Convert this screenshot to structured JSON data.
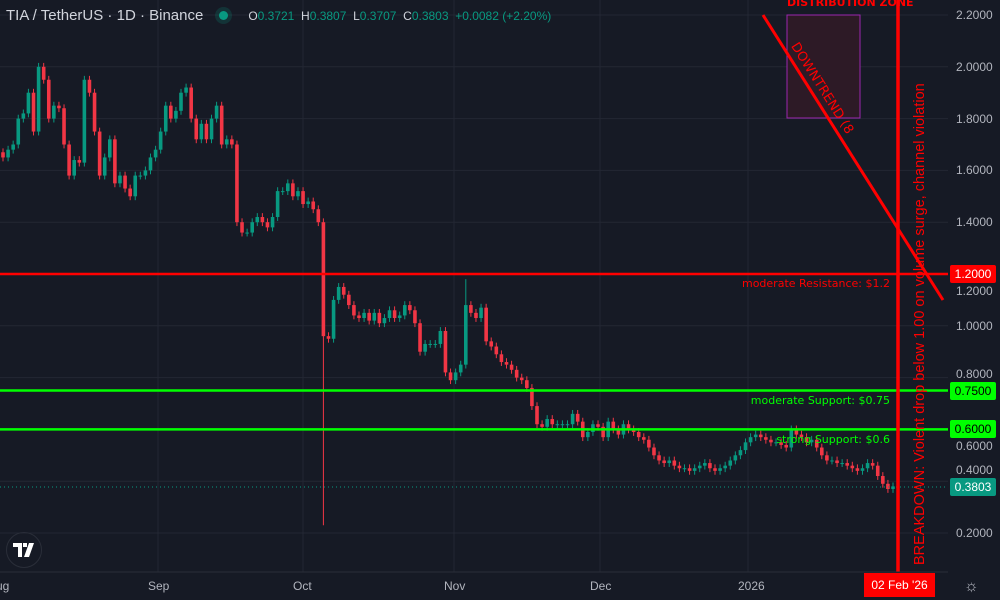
{
  "header": {
    "symbol": "TIA / TetherUS · 1D · Binance",
    "open_label": "O",
    "open": "0.3721",
    "high_label": "H",
    "high": "0.3807",
    "low_label": "L",
    "low": "0.3707",
    "close_label": "C",
    "close": "0.3803",
    "change": "+0.0082 (+2.20%)"
  },
  "colors": {
    "background": "#161a25",
    "up": "#089981",
    "down": "#f23645",
    "resistance": "#ff0000",
    "support": "#00ff00",
    "zone_border": "#9c27b0"
  },
  "chart_data": {
    "type": "candlestick",
    "interval": "1D",
    "ylim": [
      0.2,
      2.2
    ],
    "y_ticks": [
      "2.2000",
      "2.0000",
      "1.8000",
      "1.6000",
      "1.4000",
      "1.2000",
      "1.0000",
      "0.8000",
      "0.6000",
      "0.4000",
      "0.2000"
    ],
    "x_ticks": [
      "Aug",
      "Sep",
      "Oct",
      "Nov",
      "Dec",
      "2026"
    ],
    "grid": true,
    "closes": [
      1.65,
      1.68,
      1.7,
      1.8,
      1.82,
      1.9,
      1.75,
      2.0,
      1.95,
      1.8,
      1.85,
      1.84,
      1.7,
      1.58,
      1.64,
      1.63,
      1.95,
      1.9,
      1.75,
      1.58,
      1.65,
      1.72,
      1.55,
      1.58,
      1.53,
      1.5,
      1.58,
      1.58,
      1.6,
      1.65,
      1.68,
      1.75,
      1.85,
      1.8,
      1.83,
      1.9,
      1.92,
      1.8,
      1.72,
      1.78,
      1.72,
      1.8,
      1.85,
      1.7,
      1.72,
      1.7,
      1.4,
      1.36,
      1.36,
      1.4,
      1.42,
      1.4,
      1.38,
      1.42,
      1.52,
      1.52,
      1.55,
      1.5,
      1.52,
      1.47,
      1.48,
      1.45,
      1.4,
      0.96,
      0.95,
      1.1,
      1.15,
      1.12,
      1.08,
      1.04,
      1.03,
      1.05,
      1.02,
      1.05,
      1.01,
      1.03,
      1.06,
      1.03,
      1.04,
      1.08,
      1.06,
      1.01,
      0.9,
      0.93,
      0.93,
      0.93,
      0.98,
      0.82,
      0.79,
      0.82,
      0.85,
      1.08,
      1.05,
      1.03,
      1.07,
      0.94,
      0.92,
      0.89,
      0.86,
      0.85,
      0.83,
      0.8,
      0.79,
      0.76,
      0.69,
      0.62,
      0.61,
      0.64,
      0.62,
      0.62,
      0.62,
      0.62,
      0.66,
      0.63,
      0.57,
      0.59,
      0.62,
      0.61,
      0.57,
      0.63,
      0.6,
      0.58,
      0.62,
      0.6,
      0.59,
      0.57,
      0.56,
      0.53,
      0.5,
      0.48,
      0.47,
      0.48,
      0.46,
      0.45,
      0.45,
      0.44,
      0.45,
      0.46,
      0.47,
      0.45,
      0.44,
      0.45,
      0.46,
      0.48,
      0.5,
      0.52,
      0.55,
      0.57,
      0.58,
      0.57,
      0.56,
      0.55,
      0.55,
      0.54,
      0.53,
      0.6,
      0.58,
      0.57,
      0.55,
      0.56,
      0.53,
      0.5,
      0.48,
      0.48,
      0.47,
      0.47,
      0.46,
      0.45,
      0.44,
      0.45,
      0.47,
      0.46,
      0.42,
      0.39,
      0.37,
      0.38
    ],
    "notable_wicks": [
      {
        "index": 63,
        "low": 0.23
      },
      {
        "index": 91,
        "high": 1.18
      }
    ],
    "last_price": "0.3803",
    "levels": [
      {
        "price": 1.2,
        "tag": "1.2000",
        "label": "moderate Resistance: $1.2",
        "color": "#ff0000"
      },
      {
        "price": 0.75,
        "tag": "0.7500",
        "label": "moderate Support: $0.75",
        "color": "#00ff00"
      },
      {
        "price": 0.6,
        "tag": "0.6000",
        "label": "strong Support: $0.6",
        "color": "#00ff00"
      }
    ],
    "annotations": {
      "zone_label": "DISTRIBUTION ZONE",
      "zone_range": [
        1.8,
        2.2
      ],
      "trend_label": "DOWNTREND (8",
      "breakdown_label": "BREAKDOWN: Violent drop below 1.00 on volume surge, channel violation",
      "breakdown_date": "02 Feb '26"
    }
  },
  "footer": {
    "logo": "TV"
  }
}
